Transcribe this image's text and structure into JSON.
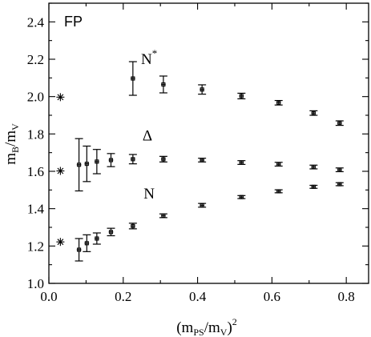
{
  "chart_data": {
    "type": "scatter",
    "title": "",
    "panel_label": "FP",
    "xlabel": {
      "base": "(m",
      "sub1": "PS",
      "mid": "/m",
      "sub2": "V",
      "end": ")",
      "sup": "2"
    },
    "ylabel": {
      "base": "m",
      "sub1": "B",
      "mid": "/m",
      "sub2": "V"
    },
    "xlim": [
      0.0,
      0.86
    ],
    "ylim": [
      1.0,
      2.5
    ],
    "xticks": [
      0.0,
      0.2,
      0.4,
      0.6,
      0.8
    ],
    "xtick_labels": [
      "0.0",
      "0.2",
      "0.4",
      "0.6",
      "0.8"
    ],
    "yticks": [
      1.0,
      1.2,
      1.4,
      1.6,
      1.8,
      2.0,
      2.2,
      2.4
    ],
    "ytick_labels": [
      "1.0",
      "1.2",
      "1.4",
      "1.6",
      "1.8",
      "2.0",
      "2.2",
      "2.4"
    ],
    "grid": false,
    "series": [
      {
        "name": "N",
        "label_base": "N",
        "label_sup": "",
        "label_at": [
          0.255,
          1.455
        ],
        "marker": "box",
        "points": [
          {
            "x": 0.081,
            "y": 1.18,
            "yerr": 0.06,
            "xerr": 0.006
          },
          {
            "x": 0.102,
            "y": 1.215,
            "yerr": 0.045,
            "xerr": 0.006
          },
          {
            "x": 0.129,
            "y": 1.24,
            "yerr": 0.03,
            "xerr": 0.006
          },
          {
            "x": 0.167,
            "y": 1.275,
            "yerr": 0.02,
            "xerr": 0.006
          },
          {
            "x": 0.226,
            "y": 1.307,
            "yerr": 0.015,
            "xerr": 0.006
          },
          {
            "x": 0.308,
            "y": 1.362,
            "yerr": 0.01,
            "xerr": 0.006
          },
          {
            "x": 0.412,
            "y": 1.418,
            "yerr": 0.01,
            "xerr": 0.006
          },
          {
            "x": 0.518,
            "y": 1.462,
            "yerr": 0.008,
            "xerr": 0.006
          },
          {
            "x": 0.618,
            "y": 1.493,
            "yerr": 0.008,
            "xerr": 0.006
          },
          {
            "x": 0.712,
            "y": 1.517,
            "yerr": 0.008,
            "xerr": 0.006
          },
          {
            "x": 0.782,
            "y": 1.531,
            "yerr": 0.008,
            "xerr": 0.006
          }
        ]
      },
      {
        "name": "Δ",
        "label_base": "Δ",
        "label_sup": "",
        "label_at": [
          0.252,
          1.765
        ],
        "marker": "box",
        "points": [
          {
            "x": 0.081,
            "y": 1.635,
            "yerr": 0.14,
            "xerr": 0.006
          },
          {
            "x": 0.102,
            "y": 1.64,
            "yerr": 0.095,
            "xerr": 0.006
          },
          {
            "x": 0.129,
            "y": 1.652,
            "yerr": 0.065,
            "xerr": 0.006
          },
          {
            "x": 0.167,
            "y": 1.66,
            "yerr": 0.035,
            "xerr": 0.006
          },
          {
            "x": 0.226,
            "y": 1.665,
            "yerr": 0.025,
            "xerr": 0.006
          },
          {
            "x": 0.308,
            "y": 1.665,
            "yerr": 0.015,
            "xerr": 0.006
          },
          {
            "x": 0.412,
            "y": 1.66,
            "yerr": 0.01,
            "xerr": 0.006
          },
          {
            "x": 0.518,
            "y": 1.647,
            "yerr": 0.01,
            "xerr": 0.006
          },
          {
            "x": 0.618,
            "y": 1.638,
            "yerr": 0.01,
            "xerr": 0.006
          },
          {
            "x": 0.712,
            "y": 1.623,
            "yerr": 0.01,
            "xerr": 0.006
          },
          {
            "x": 0.782,
            "y": 1.608,
            "yerr": 0.01,
            "xerr": 0.006
          }
        ]
      },
      {
        "name": "N*",
        "label_base": "N",
        "label_sup": "*",
        "label_at": [
          0.248,
          2.175
        ],
        "marker": "box",
        "points": [
          {
            "x": 0.226,
            "y": 2.097,
            "yerr": 0.09,
            "xerr": 0.006
          },
          {
            "x": 0.308,
            "y": 2.065,
            "yerr": 0.045,
            "xerr": 0.006
          },
          {
            "x": 0.412,
            "y": 2.038,
            "yerr": 0.025,
            "xerr": 0.006
          },
          {
            "x": 0.518,
            "y": 2.003,
            "yerr": 0.015,
            "xerr": 0.006
          },
          {
            "x": 0.618,
            "y": 1.967,
            "yerr": 0.012,
            "xerr": 0.006
          },
          {
            "x": 0.712,
            "y": 1.912,
            "yerr": 0.012,
            "xerr": 0.006
          },
          {
            "x": 0.782,
            "y": 1.858,
            "yerr": 0.012,
            "xerr": 0.006
          }
        ]
      },
      {
        "marker": "asterisk",
        "points": [
          {
            "x": 0.031,
            "y": 1.222
          },
          {
            "x": 0.031,
            "y": 1.602
          },
          {
            "x": 0.031,
            "y": 1.997
          }
        ]
      }
    ]
  }
}
